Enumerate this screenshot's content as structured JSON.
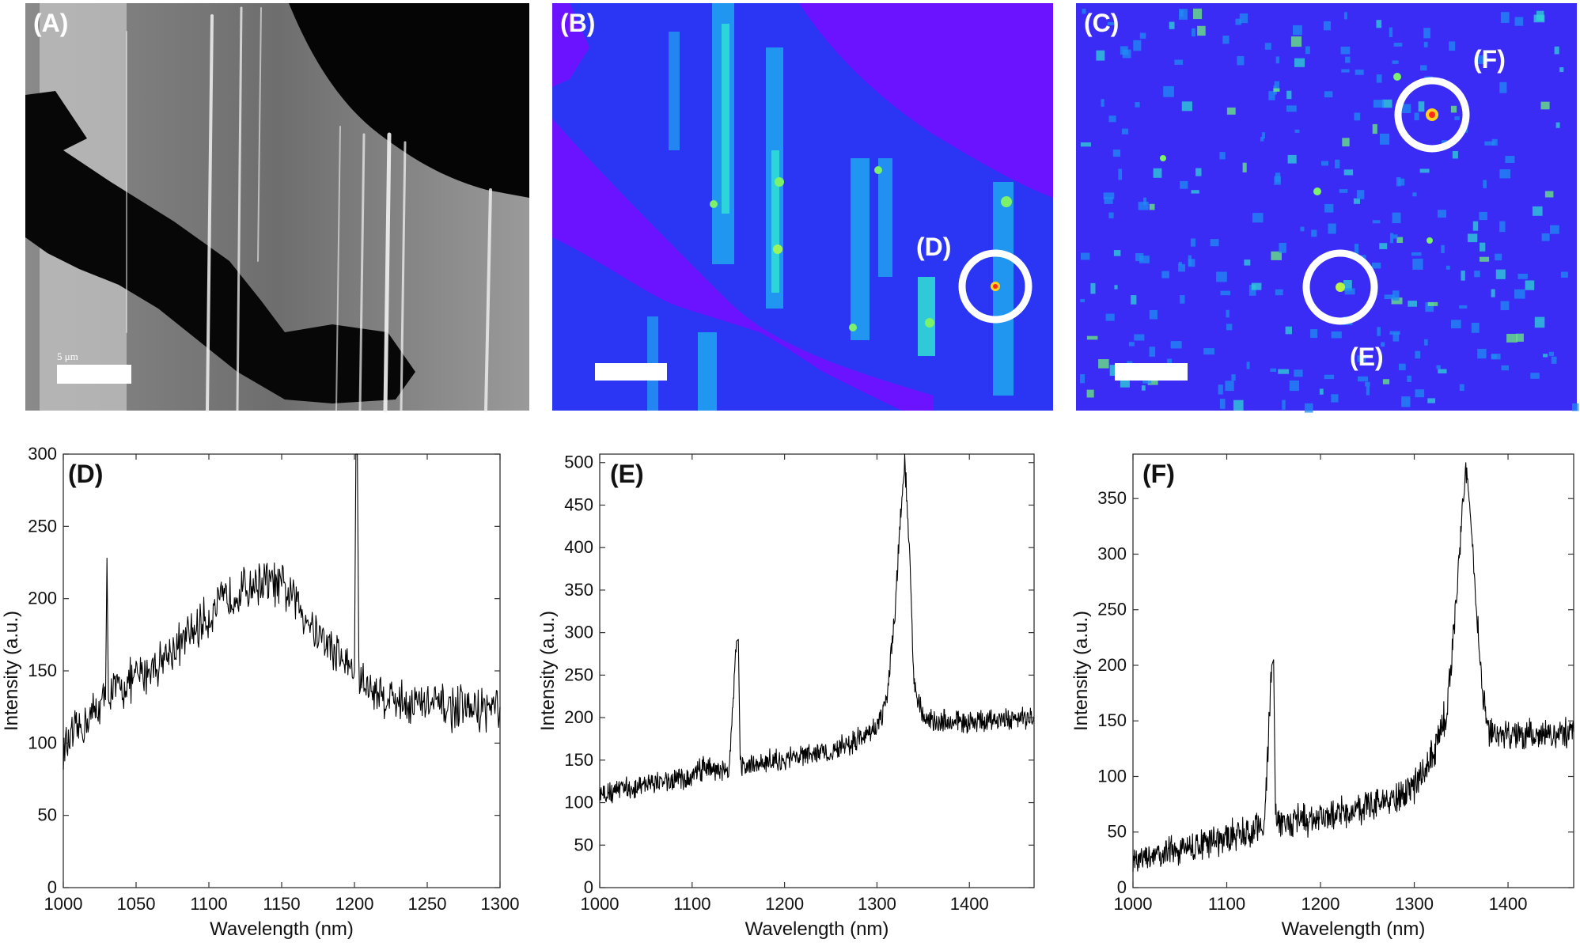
{
  "panels": {
    "A": {
      "label": "(A)",
      "scale_text": "5 μm"
    },
    "B": {
      "label": "(B)",
      "marker_label": "(D)"
    },
    "C": {
      "label": "(C)",
      "marker_labels": [
        "(F)",
        "(E)"
      ]
    }
  },
  "chart_data": [
    {
      "type": "line",
      "panel_label": "(D)",
      "xlabel": "Wavelength (nm)",
      "ylabel": "Intensity (a.u.)",
      "xlim": [
        1000,
        1300
      ],
      "ylim": [
        0,
        300
      ],
      "xticks": [
        1000,
        1050,
        1100,
        1150,
        1200,
        1250,
        1300
      ],
      "yticks": [
        0,
        50,
        100,
        150,
        200,
        250,
        300
      ],
      "x": [
        1000,
        1010,
        1020,
        1029,
        1030,
        1031,
        1040,
        1050,
        1060,
        1070,
        1080,
        1090,
        1100,
        1110,
        1120,
        1130,
        1140,
        1150,
        1160,
        1170,
        1180,
        1190,
        1200,
        1201,
        1202,
        1203,
        1210,
        1220,
        1230,
        1240,
        1250,
        1260,
        1270,
        1280,
        1290,
        1300
      ],
      "y": [
        95,
        108,
        120,
        130,
        228,
        135,
        138,
        145,
        152,
        160,
        168,
        178,
        188,
        198,
        205,
        210,
        212,
        208,
        198,
        183,
        170,
        160,
        150,
        300,
        300,
        145,
        138,
        133,
        130,
        128,
        127,
        125,
        124,
        123,
        124,
        125
      ],
      "noise": 14,
      "color": "#000000"
    },
    {
      "type": "line",
      "panel_label": "(E)",
      "xlabel": "Wavelength (nm)",
      "ylabel": "Intensity (a.u.)",
      "xlim": [
        1000,
        1470
      ],
      "ylim": [
        0,
        510
      ],
      "xticks": [
        1000,
        1100,
        1200,
        1300,
        1400
      ],
      "yticks": [
        0,
        50,
        100,
        150,
        200,
        250,
        300,
        350,
        400,
        450,
        500
      ],
      "x": [
        1000,
        1050,
        1100,
        1110,
        1140,
        1148,
        1150,
        1152,
        1160,
        1200,
        1250,
        1280,
        1300,
        1310,
        1320,
        1325,
        1330,
        1335,
        1340,
        1350,
        1360,
        1400,
        1470
      ],
      "y": [
        110,
        122,
        130,
        140,
        138,
        290,
        292,
        145,
        142,
        152,
        160,
        175,
        190,
        215,
        330,
        430,
        505,
        400,
        240,
        200,
        195,
        195,
        200
      ],
      "noise": 12,
      "color": "#000000"
    },
    {
      "type": "line",
      "panel_label": "(F)",
      "xlabel": "Wavelength (nm)",
      "ylabel": "Intensity (a.u.)",
      "xlim": [
        1000,
        1470
      ],
      "ylim": [
        0,
        390
      ],
      "xticks": [
        1000,
        1100,
        1200,
        1300,
        1400
      ],
      "yticks": [
        0,
        50,
        100,
        150,
        200,
        250,
        300,
        350
      ],
      "x": [
        1000,
        1050,
        1100,
        1140,
        1148,
        1150,
        1152,
        1160,
        1200,
        1250,
        1300,
        1320,
        1335,
        1345,
        1350,
        1355,
        1360,
        1365,
        1372,
        1380,
        1400,
        1470
      ],
      "y": [
        25,
        35,
        45,
        55,
        200,
        205,
        60,
        60,
        62,
        72,
        90,
        120,
        160,
        260,
        320,
        385,
        330,
        270,
        180,
        140,
        135,
        140
      ],
      "noise": 13,
      "color": "#000000"
    }
  ]
}
